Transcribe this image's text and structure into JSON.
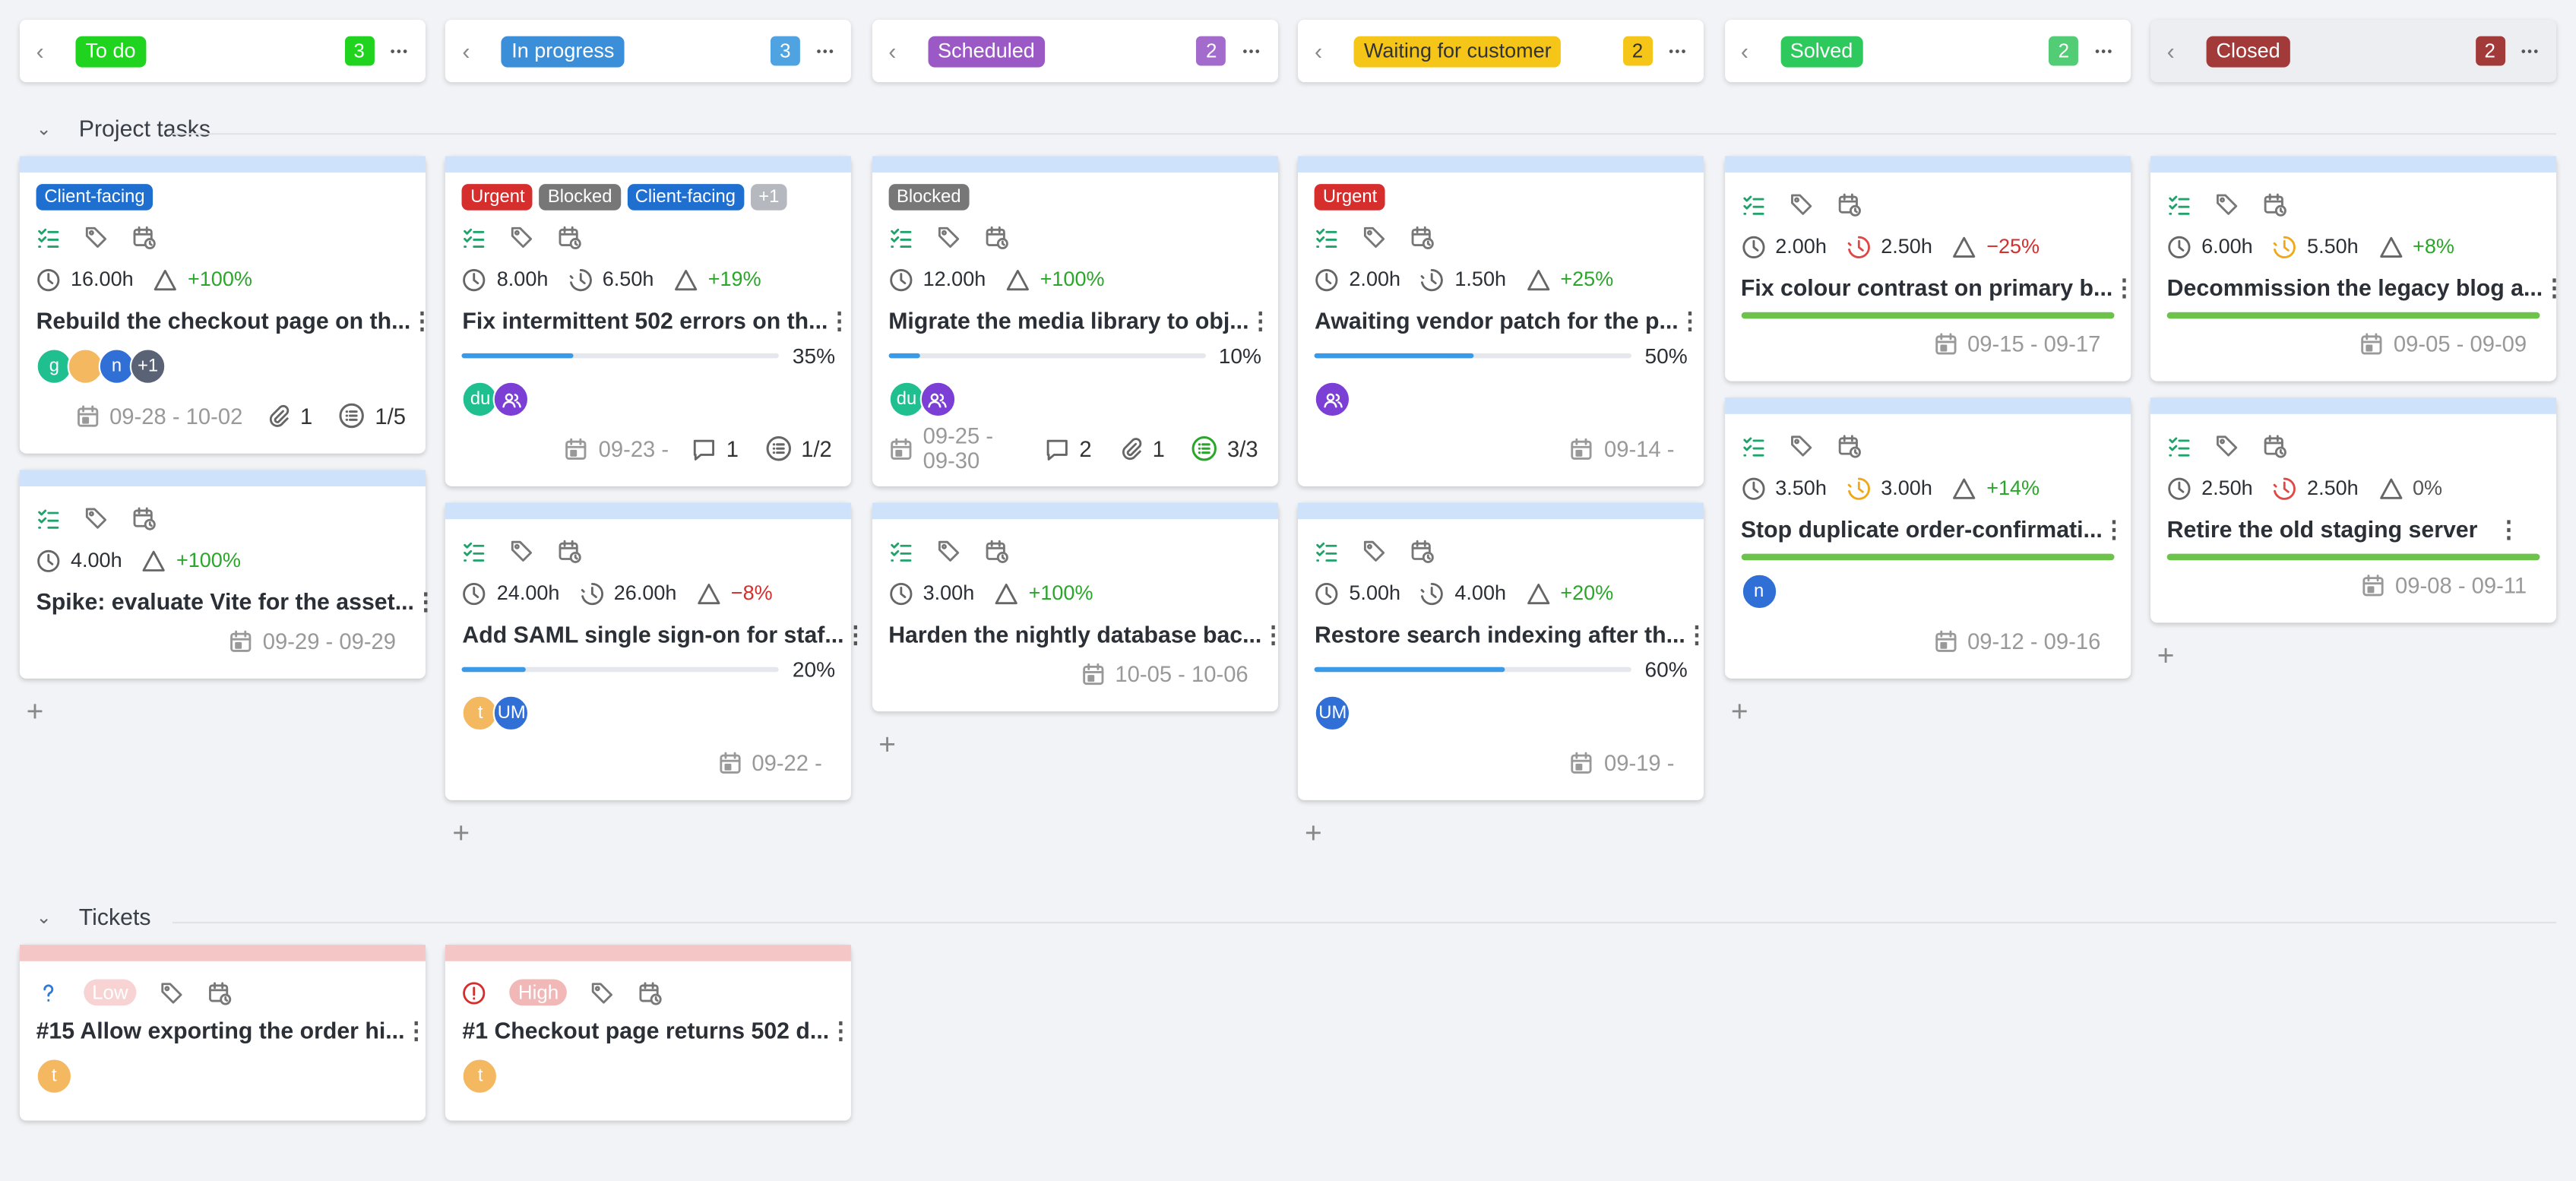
{
  "columns": [
    {
      "title": "To do",
      "color": "#1fd31f",
      "count": 3,
      "count_color": "#1fd31f"
    },
    {
      "title": "In progress",
      "color": "#3b8fd9",
      "count": 3,
      "count_color": "#4ea3e0"
    },
    {
      "title": "Scheduled",
      "color": "#9b59c6",
      "count": 2,
      "count_color": "#a36bcb"
    },
    {
      "title": "Waiting for customer",
      "color": "#f5c518",
      "text_color": "#333",
      "count": 2,
      "count_color": "#f5c518"
    },
    {
      "title": "Solved",
      "color": "#2ec95c",
      "count": 2,
      "count_color": "#52cc75"
    },
    {
      "title": "Closed",
      "color": "#a33a3a",
      "count": 2,
      "count_color": "#a33a3a",
      "muted": true
    }
  ],
  "groups": [
    {
      "title": "Project tasks",
      "show_add": true,
      "strip": "#cfe2fb",
      "lanes": [
        [
          {
            "tags": [
              {
                "text": "Client-facing",
                "color": "#1f6fd1"
              }
            ],
            "estimate": "16.00h",
            "delta": "+100%",
            "delta_color": "#2aa62a",
            "title": "Rebuild the checkout page on th...",
            "avatars": [
              {
                "text": "g",
                "color": "#1fbf8f"
              },
              {
                "color": "#f4b860"
              },
              {
                "text": "n",
                "color": "#2f6fd6"
              },
              {
                "text": "+1",
                "color": "#5a6275"
              }
            ],
            "date": "09-28 - 10-02",
            "attachments": 1,
            "checklist": "1/5"
          },
          {
            "estimate": "4.00h",
            "delta": "+100%",
            "delta_color": "#2aa62a",
            "title": "Spike: evaluate Vite for the asset...",
            "date": "09-29 - 09-29"
          }
        ],
        [
          {
            "tags": [
              {
                "text": "Urgent",
                "color": "#d62d2d"
              },
              {
                "text": "Blocked",
                "color": "#777"
              },
              {
                "text": "Client-facing",
                "color": "#1f6fd1"
              },
              {
                "text": "+1",
                "color": "#b5b8be"
              }
            ],
            "estimate": "8.00h",
            "spent": "6.50h",
            "delta": "+19%",
            "delta_color": "#2aa62a",
            "title": "Fix intermittent 502 errors on th...",
            "progress": "35%",
            "avatars": [
              {
                "text": "du",
                "color": "#1fbf8f"
              },
              {
                "color": "#7b3fd6",
                "icon": "group"
              }
            ],
            "date": "09-23 -",
            "comments": 1,
            "checklist": "1/2"
          },
          {
            "estimate": "24.00h",
            "spent": "26.00h",
            "delta": "−8%",
            "delta_color": "#d62d2d",
            "title": "Add SAML single sign-on for staf...",
            "progress": "20%",
            "avatars": [
              {
                "text": "t",
                "color": "#f4b860"
              },
              {
                "text": "UM",
                "color": "#2f6fd6"
              }
            ],
            "date": "09-22 -"
          }
        ],
        [
          {
            "tags": [
              {
                "text": "Blocked",
                "color": "#777"
              }
            ],
            "estimate": "12.00h",
            "delta": "+100%",
            "delta_color": "#2aa62a",
            "title": "Migrate the media library to obj...",
            "progress": "10%",
            "avatars": [
              {
                "text": "du",
                "color": "#1fbf8f"
              },
              {
                "color": "#7b3fd6",
                "icon": "group"
              }
            ],
            "date": "09-25 - 09-30",
            "comments": 2,
            "attachments": 1,
            "checklist": "3/3",
            "checklist_done": true
          },
          {
            "estimate": "3.00h",
            "delta": "+100%",
            "delta_color": "#2aa62a",
            "title": "Harden the nightly database bac...",
            "date": "10-05 - 10-06"
          }
        ],
        [
          {
            "tags": [
              {
                "text": "Urgent",
                "color": "#d62d2d"
              }
            ],
            "estimate": "2.00h",
            "spent": "1.50h",
            "delta": "+25%",
            "delta_color": "#2aa62a",
            "title": "Awaiting vendor patch for the p...",
            "progress": "50%",
            "avatars": [
              {
                "color": "#7b3fd6",
                "icon": "group"
              }
            ],
            "date": "09-14 -"
          },
          {
            "estimate": "5.00h",
            "spent": "4.00h",
            "delta": "+20%",
            "delta_color": "#2aa62a",
            "title": "Restore search indexing after th...",
            "progress": "60%",
            "avatars": [
              {
                "text": "UM",
                "color": "#2f6fd6"
              }
            ],
            "date": "09-19 -"
          }
        ],
        [
          {
            "estimate": "2.00h",
            "spent": "2.50h",
            "spent_color": "#e04848",
            "delta": "−25%",
            "delta_color": "#d62d2d",
            "title": "Fix colour contrast on primary b...",
            "complete": true,
            "date": "09-15 - 09-17"
          },
          {
            "estimate": "3.50h",
            "spent": "3.00h",
            "spent_color": "#f0a818",
            "delta": "+14%",
            "delta_color": "#2aa62a",
            "title": "Stop duplicate order-confirmati...",
            "complete": true,
            "avatars": [
              {
                "text": "n",
                "color": "#2f6fd6"
              }
            ],
            "date": "09-12 - 09-16"
          }
        ],
        [
          {
            "estimate": "6.00h",
            "spent": "5.50h",
            "spent_color": "#f0a818",
            "delta": "+8%",
            "delta_color": "#2aa62a",
            "title": "Decommission the legacy blog a...",
            "complete": true,
            "date": "09-05 - 09-09"
          },
          {
            "estimate": "2.50h",
            "spent": "2.50h",
            "spent_color": "#e04848",
            "delta": "0%",
            "delta_color": "#555",
            "title": "Retire the old staging server",
            "complete": true,
            "date": "09-08 - 09-11"
          }
        ]
      ]
    },
    {
      "title": "Tickets",
      "show_add": false,
      "strip": "#f5c6c6",
      "lanes": [
        [
          {
            "kind": "question",
            "priority": "Low",
            "priority_color": "#f8d3d3",
            "title": "#15 Allow exporting the order hi...",
            "avatars": [
              {
                "text": "t",
                "color": "#f4b860"
              }
            ]
          }
        ],
        [
          {
            "kind": "problem",
            "priority": "High",
            "priority_color": "#f2b8b8",
            "title": "#1 Checkout page returns 502 d...",
            "avatars": [
              {
                "text": "t",
                "color": "#f4b860"
              }
            ]
          }
        ],
        [],
        [],
        [],
        []
      ]
    }
  ]
}
